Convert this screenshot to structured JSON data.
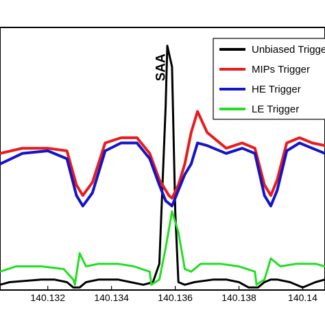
{
  "chart_data": {
    "type": "line",
    "title": "",
    "xlabel": "",
    "ylabel": "",
    "xlim": [
      140.1305,
      140.1407
    ],
    "ylim": [
      0,
      100
    ],
    "grid": false,
    "legend_placement": "top-right",
    "x_ticks": [
      "140.132",
      "140.134",
      "140.136",
      "140.138",
      "140.14"
    ],
    "x_tick_values": [
      140.132,
      140.134,
      140.136,
      140.138,
      140.14
    ],
    "annotation": {
      "text": "SAA",
      "x": 140.1358,
      "y": 90
    },
    "series": [
      {
        "name": "Unbiased Trigger",
        "color": "#000000",
        "x": [
          140.1305,
          140.1308,
          140.1318,
          140.1322,
          140.1326,
          140.1328,
          140.133,
          140.1332,
          140.1336,
          140.1342,
          140.1346,
          140.135,
          140.1353,
          140.1355,
          140.1357,
          140.13575,
          140.1359,
          140.136,
          140.1361,
          140.1363,
          140.1366,
          140.1372,
          140.1376,
          140.138,
          140.1383,
          140.1386,
          140.1388,
          140.139,
          140.1392,
          140.1396,
          140.14,
          140.1404,
          140.1407
        ],
        "y": [
          2,
          3,
          4,
          4,
          3,
          1,
          1,
          3,
          4,
          4,
          3,
          2,
          3,
          10,
          70,
          93,
          85,
          30,
          3,
          2,
          3,
          4,
          4,
          3,
          1,
          1,
          3,
          4,
          4,
          3,
          1,
          3,
          4
        ]
      },
      {
        "name": "MIPs Trigger",
        "color": "#e81c1c",
        "x": [
          140.1305,
          140.1312,
          140.132,
          140.1326,
          140.1329,
          140.1331,
          140.1334,
          140.1338,
          140.1343,
          140.1348,
          140.1352,
          140.1355,
          140.1358,
          140.1359,
          140.1361,
          140.1363,
          140.1365,
          140.1367,
          140.137,
          140.1376,
          140.1381,
          140.1385,
          140.1388,
          140.139,
          140.1392,
          140.1395,
          140.1399,
          140.1403,
          140.1407
        ],
        "y": [
          52,
          54,
          54,
          53,
          40,
          36,
          41,
          56,
          58,
          58,
          52,
          42,
          36,
          35,
          40,
          48,
          60,
          68,
          60,
          54,
          56,
          54,
          40,
          36,
          42,
          56,
          58,
          56,
          55
        ]
      },
      {
        "name": "HE Trigger",
        "color": "#1414c8",
        "x": [
          140.1305,
          140.1312,
          140.132,
          140.1326,
          140.1329,
          140.1331,
          140.1334,
          140.1338,
          140.1343,
          140.1348,
          140.1352,
          140.1355,
          140.1357,
          140.1359,
          140.1361,
          140.1363,
          140.1365,
          140.1367,
          140.137,
          140.1376,
          140.1381,
          140.1385,
          140.1388,
          140.139,
          140.1392,
          140.1395,
          140.1399,
          140.1403,
          140.1407
        ],
        "y": [
          48,
          52,
          53,
          50,
          36,
          32,
          37,
          53,
          56,
          56,
          50,
          40,
          34,
          32,
          38,
          44,
          48,
          56,
          55,
          52,
          54,
          52,
          36,
          32,
          38,
          53,
          56,
          54,
          52
        ]
      },
      {
        "name": "LE Trigger",
        "color": "#22dd22",
        "x": [
          140.1305,
          140.131,
          140.1318,
          140.1325,
          140.1328,
          140.13285,
          140.133,
          140.1332,
          140.1336,
          140.1342,
          140.1347,
          140.1352,
          140.13525,
          140.1355,
          140.1357,
          140.1359,
          140.1361,
          140.1363,
          140.1365,
          140.1368,
          140.1374,
          140.138,
          140.1385,
          140.13855,
          140.1388,
          140.139,
          140.1393,
          140.1398,
          140.1404,
          140.1407
        ],
        "y": [
          7,
          9,
          9,
          8,
          4,
          2,
          14,
          9,
          10,
          10,
          9,
          7,
          2,
          4,
          16,
          30,
          22,
          8,
          7,
          10,
          10,
          9,
          7,
          2,
          4,
          12,
          9,
          10,
          10,
          9
        ]
      }
    ]
  }
}
